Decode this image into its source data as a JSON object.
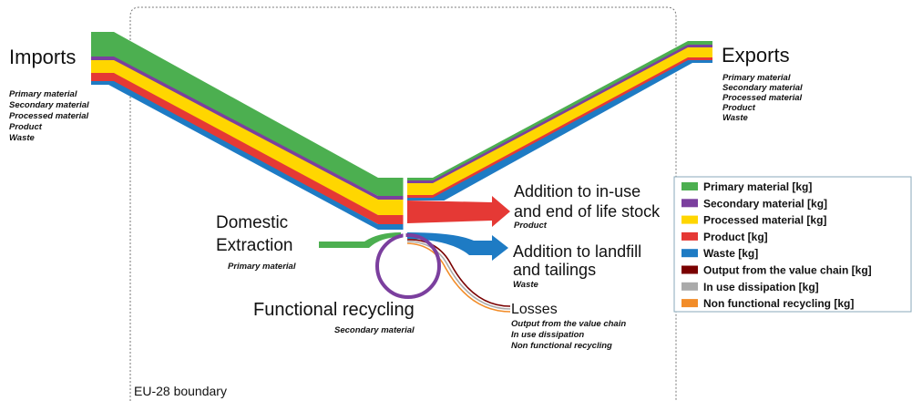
{
  "imports": {
    "label": "Imports",
    "items": [
      "Primary material",
      "Secondary material",
      "Processed material",
      "Product",
      "Waste"
    ]
  },
  "exports": {
    "label": "Exports",
    "items": [
      "Primary material",
      "Secondary material",
      "Processed material",
      "Product",
      "Waste"
    ]
  },
  "domestic_extraction": {
    "label_lines": [
      "Domestic",
      "Extraction"
    ],
    "sub": "Primary material"
  },
  "stock": {
    "label_lines": [
      "Addition to in-use",
      "and end of life stock"
    ],
    "sub": "Product"
  },
  "landfill": {
    "label_lines": [
      "Addition to landfill",
      "and tailings"
    ],
    "sub": "Waste"
  },
  "recycling": {
    "label": "Functional recycling",
    "sub": "Secondary material"
  },
  "losses": {
    "label": "Losses",
    "items": [
      "Output from the value chain",
      "In use dissipation",
      "Non functional recycling"
    ]
  },
  "legend": {
    "items": [
      {
        "name": "Primary material [kg]",
        "color": "#4caf50"
      },
      {
        "name": "Secondary material [kg]",
        "color": "#7b3f9e"
      },
      {
        "name": "Processed material [kg]",
        "color": "#ffd600"
      },
      {
        "name": "Product [kg]",
        "color": "#e53935"
      },
      {
        "name": "Waste [kg]",
        "color": "#1e7bc4"
      },
      {
        "name": "Output from the value chain [kg]",
        "color": "#7a0000"
      },
      {
        "name": "In use dissipation [kg]",
        "color": "#aaaaaa"
      },
      {
        "name": "Non functional recycling [kg]",
        "color": "#f28c28"
      }
    ]
  },
  "boundary": {
    "label": "EU-28 boundary"
  }
}
